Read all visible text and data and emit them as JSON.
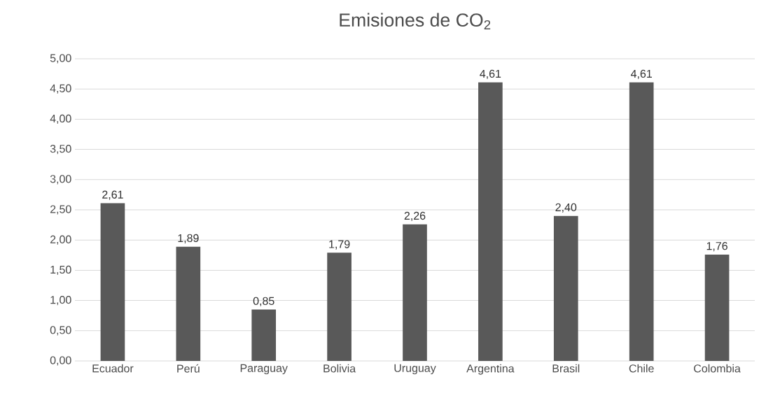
{
  "chart_data": {
    "type": "bar",
    "title": "Emisiones de CO$_{2}$",
    "categories": [
      "Ecuador",
      "Perú",
      "Paraguay",
      "Bolivia",
      "Uruguay",
      "Argentina",
      "Brasil",
      "Chile",
      "Colombia"
    ],
    "values": [
      2.61,
      1.89,
      0.85,
      1.79,
      2.26,
      4.61,
      2.4,
      4.61,
      1.76
    ],
    "value_labels": [
      "2,61",
      "1,89",
      "0,85",
      "1,79",
      "2,26",
      "4,61",
      "2,40",
      "4,61",
      "1,76"
    ],
    "color": "#595959",
    "ylim": [
      0,
      5
    ],
    "yticks": [
      {
        "value": 0,
        "label": "0,00"
      },
      {
        "value": 0.5,
        "label": "0,50"
      },
      {
        "value": 1,
        "label": "1,00"
      },
      {
        "value": 1.5,
        "label": "1,50"
      },
      {
        "value": 2,
        "label": "2,00"
      },
      {
        "value": 2.5,
        "label": "2,50"
      },
      {
        "value": 3,
        "label": "3,00"
      },
      {
        "value": 3.5,
        "label": "3,50"
      },
      {
        "value": 4,
        "label": "4,00"
      },
      {
        "value": 4.5,
        "label": "4,50"
      },
      {
        "value": 5,
        "label": "5,00"
      }
    ],
    "grid": "y"
  }
}
